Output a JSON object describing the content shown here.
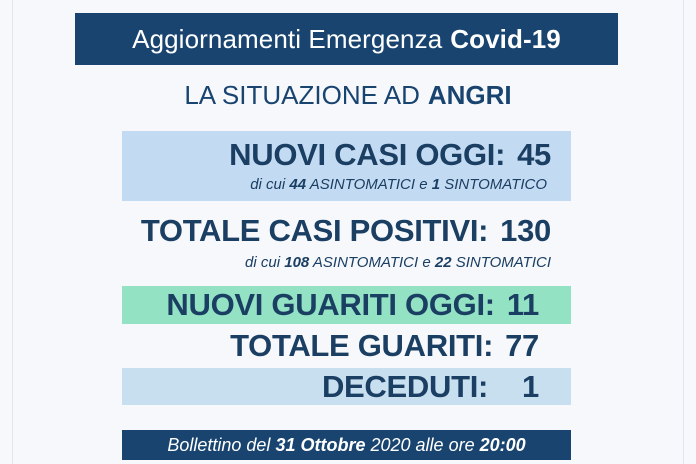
{
  "header": {
    "title_prefix": "Aggiornamenti Emergenza",
    "title_bold": "Covid-19",
    "subtitle_prefix": "LA SITUAZIONE AD",
    "subtitle_bold": "ANGRI"
  },
  "new_cases": {
    "label": "NUOVI CASI OGGI:",
    "value": "45",
    "sub_prefix": "di cui",
    "asymptomatic": "44",
    "asymptomatic_label": "ASINTOMATICI e",
    "symptomatic": "1",
    "symptomatic_label": "SINTOMATICO"
  },
  "total_cases": {
    "label": "TOTALE CASI POSITIVI:",
    "value": "130",
    "sub_prefix": "di cui",
    "asymptomatic": "108",
    "asymptomatic_label": "ASINTOMATICI e",
    "symptomatic": "22",
    "symptomatic_label": "SINTOMATICI"
  },
  "new_healed": {
    "label": "NUOVI GUARITI OGGI:",
    "value": "11"
  },
  "total_healed": {
    "label": "TOTALE GUARITI:",
    "value": "77"
  },
  "deceased": {
    "label": "DECEDUTI:",
    "value": "1"
  },
  "footer": {
    "prefix": "Bollettino del",
    "date": "31 Ottobre",
    "year": "2020",
    "time_prefix": "alle ore",
    "time": "20:00"
  },
  "colors": {
    "navy": "#18446f",
    "light_blue": "#c3dbf2",
    "mint": "#92e2c3",
    "pale_blue": "#c8dff0"
  }
}
